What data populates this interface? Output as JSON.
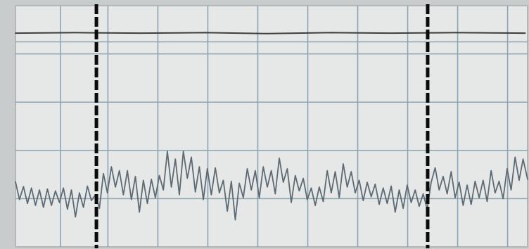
{
  "colors": {
    "paper": "#e6e8e7",
    "paper_edge": "#b3b7b8",
    "grid": "#8ca4b2",
    "upper_trace": "#3c3f42",
    "signal": "#5d6a74",
    "event_marker": "#0b0b0b"
  },
  "chart_data": {
    "type": "line",
    "title": "",
    "xlabel": "",
    "ylabel": "",
    "grid": true,
    "axis_ticks_printed": false,
    "xlim": [
      0,
      1.025
    ],
    "ylim": [
      0,
      5
    ],
    "major_vertical_gridlines": [
      0.09,
      0.185,
      0.285,
      0.385,
      0.485,
      0.585,
      0.685,
      0.785,
      0.885,
      0.985
    ],
    "major_horizontal_gridlines": [
      1,
      2,
      3,
      4,
      4.25
    ],
    "event_markers": [
      {
        "x": 0.162,
        "style": "heavy-dashed"
      },
      {
        "x": 0.825,
        "style": "heavy-dashed"
      }
    ],
    "series": [
      {
        "role": "baseline-trace",
        "values": [
          [
            0.0,
            4.43
          ],
          [
            0.12,
            4.44
          ],
          [
            0.25,
            4.43
          ],
          [
            0.38,
            4.44
          ],
          [
            0.5,
            4.42
          ],
          [
            0.63,
            4.44
          ],
          [
            0.75,
            4.43
          ],
          [
            0.88,
            4.44
          ],
          [
            1.02,
            4.43
          ]
        ]
      },
      {
        "role": "oscillating-signal",
        "values": [
          [
            0.0,
            1.35
          ],
          [
            0.008,
            0.98
          ],
          [
            0.016,
            1.25
          ],
          [
            0.024,
            0.9
          ],
          [
            0.032,
            1.22
          ],
          [
            0.04,
            0.86
          ],
          [
            0.048,
            1.18
          ],
          [
            0.056,
            0.82
          ],
          [
            0.064,
            1.2
          ],
          [
            0.072,
            0.86
          ],
          [
            0.08,
            1.16
          ],
          [
            0.088,
            0.92
          ],
          [
            0.096,
            1.22
          ],
          [
            0.104,
            0.78
          ],
          [
            0.112,
            1.18
          ],
          [
            0.12,
            0.62
          ],
          [
            0.128,
            1.12
          ],
          [
            0.136,
            0.82
          ],
          [
            0.144,
            1.26
          ],
          [
            0.152,
            0.96
          ],
          [
            0.16,
            1.08
          ],
          [
            0.168,
            0.8
          ],
          [
            0.176,
            1.52
          ],
          [
            0.184,
            1.12
          ],
          [
            0.192,
            1.66
          ],
          [
            0.2,
            1.24
          ],
          [
            0.208,
            1.58
          ],
          [
            0.216,
            1.08
          ],
          [
            0.224,
            1.58
          ],
          [
            0.232,
            0.98
          ],
          [
            0.24,
            1.46
          ],
          [
            0.248,
            0.72
          ],
          [
            0.256,
            1.38
          ],
          [
            0.264,
            0.9
          ],
          [
            0.272,
            1.4
          ],
          [
            0.28,
            1.02
          ],
          [
            0.288,
            1.48
          ],
          [
            0.296,
            1.18
          ],
          [
            0.304,
            1.98
          ],
          [
            0.312,
            1.24
          ],
          [
            0.32,
            1.82
          ],
          [
            0.328,
            1.08
          ],
          [
            0.336,
            1.98
          ],
          [
            0.344,
            1.42
          ],
          [
            0.352,
            1.86
          ],
          [
            0.36,
            1.14
          ],
          [
            0.368,
            1.66
          ],
          [
            0.376,
            0.98
          ],
          [
            0.384,
            1.62
          ],
          [
            0.392,
            1.08
          ],
          [
            0.4,
            1.64
          ],
          [
            0.408,
            1.12
          ],
          [
            0.416,
            1.38
          ],
          [
            0.424,
            0.74
          ],
          [
            0.432,
            1.36
          ],
          [
            0.44,
            0.56
          ],
          [
            0.448,
            1.32
          ],
          [
            0.456,
            1.02
          ],
          [
            0.464,
            1.62
          ],
          [
            0.472,
            1.18
          ],
          [
            0.48,
            1.58
          ],
          [
            0.488,
            1.02
          ],
          [
            0.496,
            1.66
          ],
          [
            0.504,
            1.24
          ],
          [
            0.512,
            1.58
          ],
          [
            0.52,
            1.1
          ],
          [
            0.528,
            1.84
          ],
          [
            0.536,
            1.34
          ],
          [
            0.544,
            1.62
          ],
          [
            0.552,
            0.92
          ],
          [
            0.56,
            1.48
          ],
          [
            0.568,
            1.16
          ],
          [
            0.576,
            1.42
          ],
          [
            0.584,
            0.98
          ],
          [
            0.592,
            1.22
          ],
          [
            0.6,
            0.86
          ],
          [
            0.608,
            1.24
          ],
          [
            0.616,
            0.94
          ],
          [
            0.624,
            1.58
          ],
          [
            0.632,
            1.12
          ],
          [
            0.64,
            1.56
          ],
          [
            0.648,
            1.02
          ],
          [
            0.656,
            1.72
          ],
          [
            0.664,
            1.24
          ],
          [
            0.672,
            1.56
          ],
          [
            0.68,
            1.12
          ],
          [
            0.688,
            1.38
          ],
          [
            0.696,
            0.96
          ],
          [
            0.704,
            1.34
          ],
          [
            0.712,
            1.04
          ],
          [
            0.72,
            1.3
          ],
          [
            0.728,
            0.88
          ],
          [
            0.736,
            1.22
          ],
          [
            0.744,
            0.9
          ],
          [
            0.752,
            1.26
          ],
          [
            0.76,
            0.72
          ],
          [
            0.768,
            1.18
          ],
          [
            0.776,
            0.8
          ],
          [
            0.784,
            1.28
          ],
          [
            0.792,
            0.92
          ],
          [
            0.8,
            1.18
          ],
          [
            0.808,
            0.84
          ],
          [
            0.816,
            1.1
          ],
          [
            0.824,
            0.78
          ],
          [
            0.832,
            1.34
          ],
          [
            0.84,
            1.64
          ],
          [
            0.848,
            1.18
          ],
          [
            0.856,
            1.46
          ],
          [
            0.864,
            1.1
          ],
          [
            0.872,
            1.56
          ],
          [
            0.88,
            1.02
          ],
          [
            0.888,
            1.34
          ],
          [
            0.896,
            0.86
          ],
          [
            0.904,
            1.28
          ],
          [
            0.912,
            0.88
          ],
          [
            0.92,
            1.36
          ],
          [
            0.928,
            1.02
          ],
          [
            0.936,
            1.38
          ],
          [
            0.944,
            0.94
          ],
          [
            0.952,
            1.58
          ],
          [
            0.96,
            1.12
          ],
          [
            0.968,
            1.36
          ],
          [
            0.976,
            1.0
          ],
          [
            0.984,
            1.62
          ],
          [
            0.992,
            1.18
          ],
          [
            1.0,
            1.86
          ],
          [
            1.008,
            1.38
          ],
          [
            1.016,
            1.82
          ],
          [
            1.025,
            1.4
          ]
        ]
      }
    ]
  }
}
